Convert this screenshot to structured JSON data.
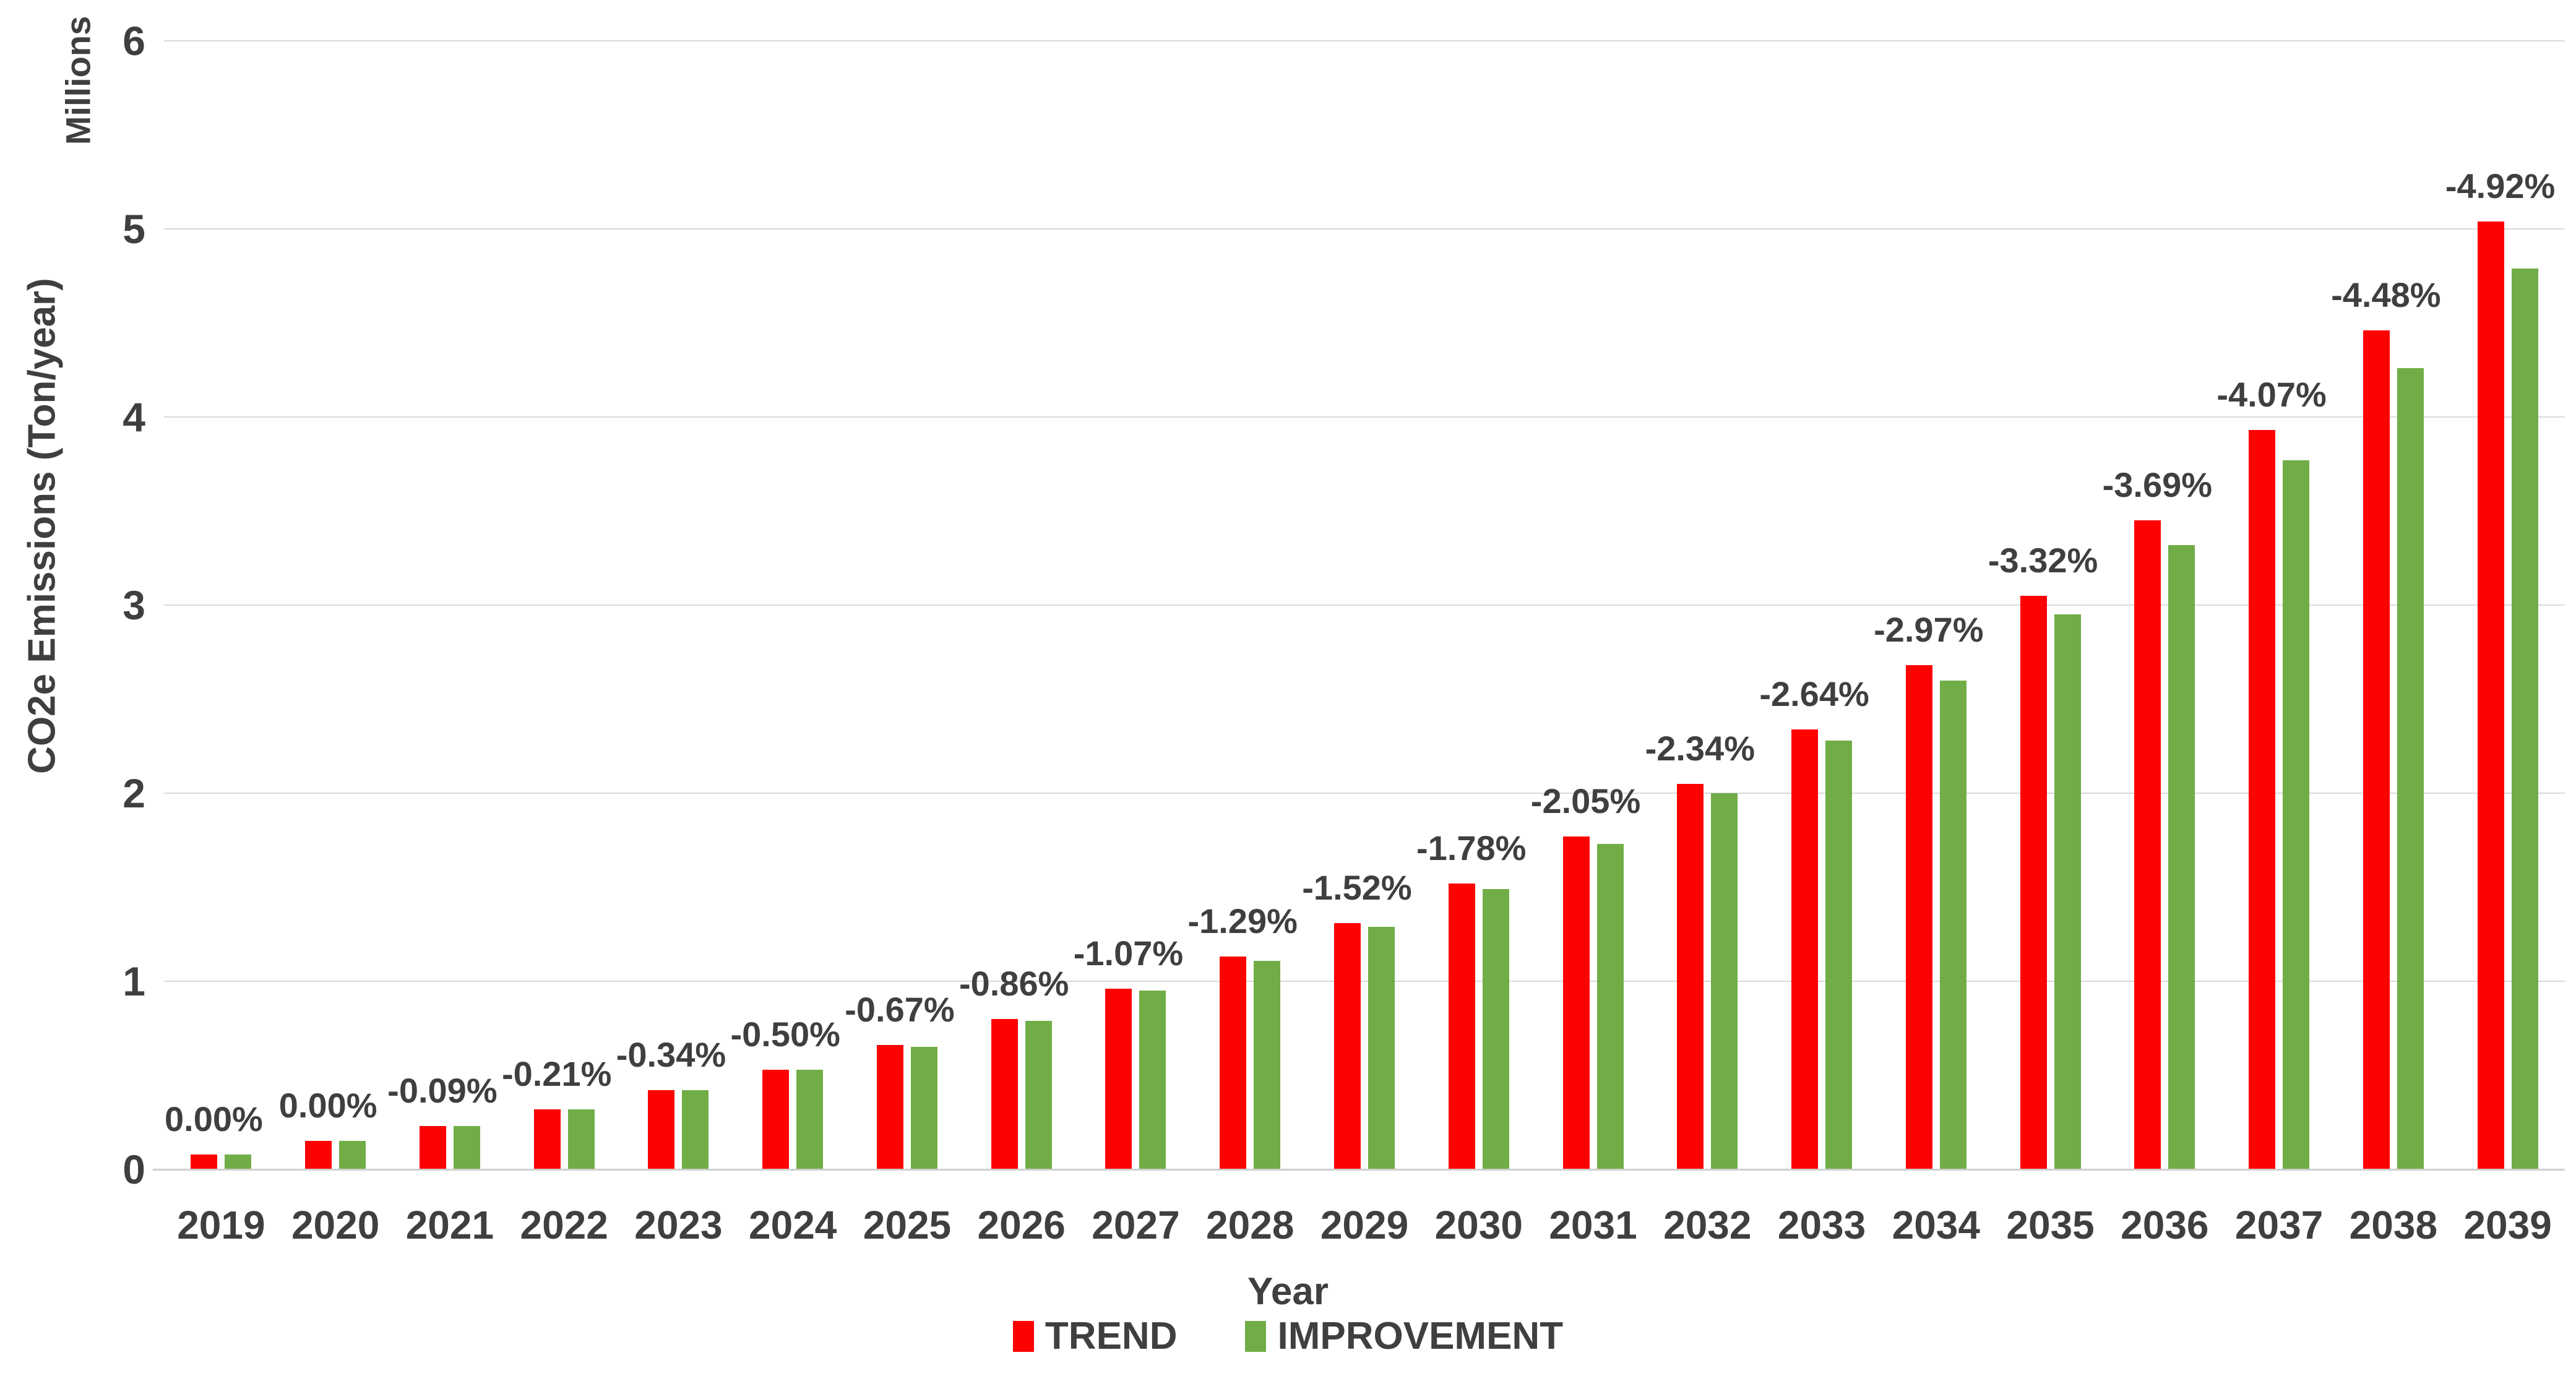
{
  "chart_data": {
    "type": "bar",
    "title": "",
    "xlabel": "Year",
    "ylabel": "CO2e Emissions (Ton/year)",
    "y_unit_label": "Millions",
    "ylim": [
      0,
      6
    ],
    "y_ticks": [
      "0",
      "1",
      "2",
      "3",
      "4",
      "5",
      "6"
    ],
    "grid": true,
    "legend_position": "bottom",
    "categories": [
      "2019",
      "2020",
      "2021",
      "2022",
      "2023",
      "2024",
      "2025",
      "2026",
      "2027",
      "2028",
      "2029",
      "2030",
      "2031",
      "2032",
      "2033",
      "2034",
      "2035",
      "2036",
      "2037",
      "2038",
      "2039"
    ],
    "series": [
      {
        "name": "TREND",
        "color": "#FE0202",
        "values": [
          0.08,
          0.15,
          0.23,
          0.32,
          0.42,
          0.53,
          0.66,
          0.8,
          0.96,
          1.13,
          1.31,
          1.52,
          1.77,
          2.05,
          2.34,
          2.68,
          3.05,
          3.45,
          3.93,
          4.46,
          5.04
        ]
      },
      {
        "name": "IMPROVEMENT",
        "color": "#70AD47",
        "values": [
          0.08,
          0.15,
          0.23,
          0.32,
          0.42,
          0.53,
          0.65,
          0.79,
          0.95,
          1.11,
          1.29,
          1.49,
          1.73,
          2.0,
          2.28,
          2.6,
          2.95,
          3.32,
          3.77,
          4.26,
          4.79
        ]
      }
    ],
    "bar_labels": [
      "0.00%",
      "0.00%",
      "-0.09%",
      "-0.21%",
      "-0.34%",
      "-0.50%",
      "-0.67%",
      "-0.86%",
      "-1.07%",
      "-1.29%",
      "-1.52%",
      "-1.78%",
      "-2.05%",
      "-2.34%",
      "-2.64%",
      "-2.97%",
      "-3.32%",
      "-3.69%",
      "-4.07%",
      "-4.48%",
      "-4.92%"
    ]
  },
  "colors": {
    "text": "#3F3F3F",
    "grid": "#D9D9D9",
    "axis_line": "#CFCFCF",
    "background": "#FFFFFF"
  }
}
